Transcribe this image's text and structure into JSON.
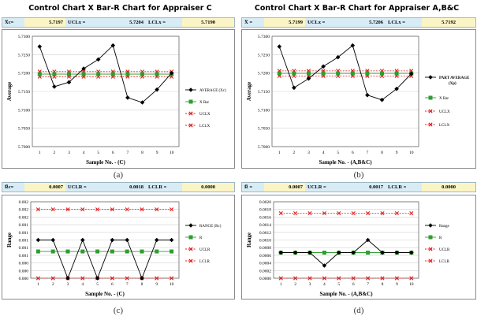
{
  "panels": [
    {
      "title": "Control Chart X Bar-R Chart for Appraiser C",
      "caption": "(a)",
      "stats": [
        {
          "label": "X̅c=",
          "value": "5.7197"
        },
        {
          "label": "UCLx =",
          "value": "5.7204"
        },
        {
          "label": "LCLx =",
          "value": "5.7190"
        }
      ]
    },
    {
      "title": "Control Chart X Bar-R Chart for Appraiser A,B&C",
      "caption": "(b)",
      "stats": [
        {
          "label": "X̅ =",
          "value": "5.7199"
        },
        {
          "label": "UCLx =",
          "value": "5.7206"
        },
        {
          "label": "LCLx =",
          "value": "5.7192"
        }
      ]
    },
    {
      "title": "",
      "caption": "(c)",
      "stats": [
        {
          "label": "R̅c=",
          "value": "0.0007"
        },
        {
          "label": "UCLR =",
          "value": "0.0018"
        },
        {
          "label": "LCLR =",
          "value": "0.0000"
        }
      ]
    },
    {
      "title": "",
      "caption": "(d)",
      "stats": [
        {
          "label": "R̅ =",
          "value": "0.0007"
        },
        {
          "label": "UCLR =",
          "value": "0.0017"
        },
        {
          "label": "LCLR =",
          "value": "0.0000"
        }
      ]
    }
  ],
  "chart_data": [
    {
      "type": "line",
      "title": "Control Chart X Bar-R Chart for Appraiser C",
      "xlabel": "Sample No. - (C)",
      "ylabel": "Average",
      "x": [
        1,
        2,
        3,
        4,
        5,
        6,
        7,
        8,
        9,
        10
      ],
      "ylim": [
        5.7,
        5.73
      ],
      "yticks": [
        "5.7000",
        "5.7050",
        "5.7100",
        "5.7150",
        "5.7200",
        "5.7250",
        "5.7300"
      ],
      "series": [
        {
          "name": "AVERAGE (Xc)",
          "color": "#000000",
          "marker": "diamond",
          "values": [
            5.7272,
            5.7163,
            5.7175,
            5.7212,
            5.7237,
            5.7275,
            5.7133,
            5.712,
            5.7155,
            5.72
          ]
        },
        {
          "name": "X Bar",
          "color": "#2e9e2e",
          "marker": "square",
          "values": [
            5.7197,
            5.7197,
            5.7197,
            5.7197,
            5.7197,
            5.7197,
            5.7197,
            5.7197,
            5.7197,
            5.7197
          ]
        },
        {
          "name": "UCLX",
          "color": "#e02020",
          "marker": "x",
          "dashed": true,
          "values": [
            5.7204,
            5.7204,
            5.7204,
            5.7204,
            5.7204,
            5.7204,
            5.7204,
            5.7204,
            5.7204,
            5.7204
          ]
        },
        {
          "name": "LCLX",
          "color": "#e02020",
          "marker": "x",
          "dashed": true,
          "values": [
            5.719,
            5.719,
            5.719,
            5.719,
            5.719,
            5.719,
            5.719,
            5.719,
            5.719,
            5.719
          ]
        }
      ]
    },
    {
      "type": "line",
      "title": "Control Chart X Bar-R Chart for Appraiser A,B&C",
      "xlabel": "Sample No. - (A,B&C)",
      "ylabel": "Average",
      "x": [
        1,
        2,
        3,
        4,
        5,
        6,
        7,
        8,
        9,
        10
      ],
      "ylim": [
        5.7,
        5.73
      ],
      "yticks": [
        "5.7000",
        "5.7050",
        "5.7100",
        "5.7150",
        "5.7200",
        "5.7250",
        "5.7300"
      ],
      "series": [
        {
          "name": "PART AVERAGE (Xp)",
          "color": "#000000",
          "marker": "diamond",
          "values": [
            5.7272,
            5.716,
            5.7185,
            5.7218,
            5.7243,
            5.7275,
            5.714,
            5.7127,
            5.7157,
            5.7198
          ]
        },
        {
          "name": "X Bar",
          "color": "#2e9e2e",
          "marker": "square",
          "values": [
            5.7199,
            5.7199,
            5.7199,
            5.7199,
            5.7199,
            5.7199,
            5.7199,
            5.7199,
            5.7199,
            5.7199
          ]
        },
        {
          "name": "UCLX",
          "color": "#e02020",
          "marker": "x",
          "dashed": true,
          "values": [
            5.7206,
            5.7206,
            5.7206,
            5.7206,
            5.7206,
            5.7206,
            5.7206,
            5.7206,
            5.7206,
            5.7206
          ]
        },
        {
          "name": "LCLX",
          "color": "#e02020",
          "marker": "x",
          "dashed": true,
          "values": [
            5.7192,
            5.7192,
            5.7192,
            5.7192,
            5.7192,
            5.7192,
            5.7192,
            5.7192,
            5.7192,
            5.7192
          ]
        }
      ]
    },
    {
      "type": "line",
      "title": "",
      "xlabel": "Sample No. - (C)",
      "ylabel": "Range",
      "x": [
        1,
        2,
        3,
        4,
        5,
        6,
        7,
        8,
        9,
        10
      ],
      "ylim": [
        0,
        0.002
      ],
      "yticks": [
        "0.000",
        "0.000",
        "0.000",
        "0.001",
        "0.001",
        "0.001",
        "0.001",
        "0.001",
        "0.002",
        "0.002",
        "0.002"
      ],
      "series": [
        {
          "name": "RANGE (Rc)",
          "color": "#000000",
          "marker": "diamond",
          "values": [
            0.001,
            0.001,
            0,
            0.001,
            0,
            0.001,
            0.001,
            0,
            0.001,
            0.001
          ]
        },
        {
          "name": "R",
          "color": "#2e9e2e",
          "marker": "square",
          "values": [
            0.0007,
            0.0007,
            0.0007,
            0.0007,
            0.0007,
            0.0007,
            0.0007,
            0.0007,
            0.0007,
            0.0007
          ]
        },
        {
          "name": "UCLR",
          "color": "#e02020",
          "marker": "x",
          "dashed": true,
          "values": [
            0.0018,
            0.0018,
            0.0018,
            0.0018,
            0.0018,
            0.0018,
            0.0018,
            0.0018,
            0.0018,
            0.0018
          ]
        },
        {
          "name": "LCLR",
          "color": "#e02020",
          "marker": "x",
          "dashed": true,
          "values": [
            0,
            0,
            0,
            0,
            0,
            0,
            0,
            0,
            0,
            0
          ]
        }
      ]
    },
    {
      "type": "line",
      "title": "",
      "xlabel": "Sample No. - (A,B&C)",
      "ylabel": "Range",
      "x": [
        1,
        2,
        3,
        4,
        5,
        6,
        7,
        8,
        9,
        10
      ],
      "ylim": [
        0,
        0.002
      ],
      "yticks": [
        "0.0000",
        "0.0002",
        "0.0004",
        "0.0006",
        "0.0008",
        "0.0010",
        "0.0012",
        "0.0014",
        "0.0016",
        "0.0018",
        "0.0020"
      ],
      "series": [
        {
          "name": "Range",
          "color": "#000000",
          "marker": "diamond",
          "values": [
            0.00067,
            0.00067,
            0.00067,
            0.00033,
            0.00067,
            0.00067,
            0.001,
            0.00067,
            0.00067,
            0.00067
          ]
        },
        {
          "name": "R",
          "color": "#2e9e2e",
          "marker": "square",
          "values": [
            0.00067,
            0.00067,
            0.00067,
            0.00067,
            0.00067,
            0.00067,
            0.00067,
            0.00067,
            0.00067,
            0.00067
          ]
        },
        {
          "name": "UCLR",
          "color": "#e02020",
          "marker": "x",
          "dashed": true,
          "values": [
            0.0017,
            0.0017,
            0.0017,
            0.0017,
            0.0017,
            0.0017,
            0.0017,
            0.0017,
            0.0017,
            0.0017
          ]
        },
        {
          "name": "LCLR",
          "color": "#e02020",
          "marker": "x",
          "dashed": true,
          "values": [
            0,
            0,
            0,
            0,
            0,
            0,
            0,
            0,
            0,
            0
          ]
        }
      ]
    }
  ]
}
